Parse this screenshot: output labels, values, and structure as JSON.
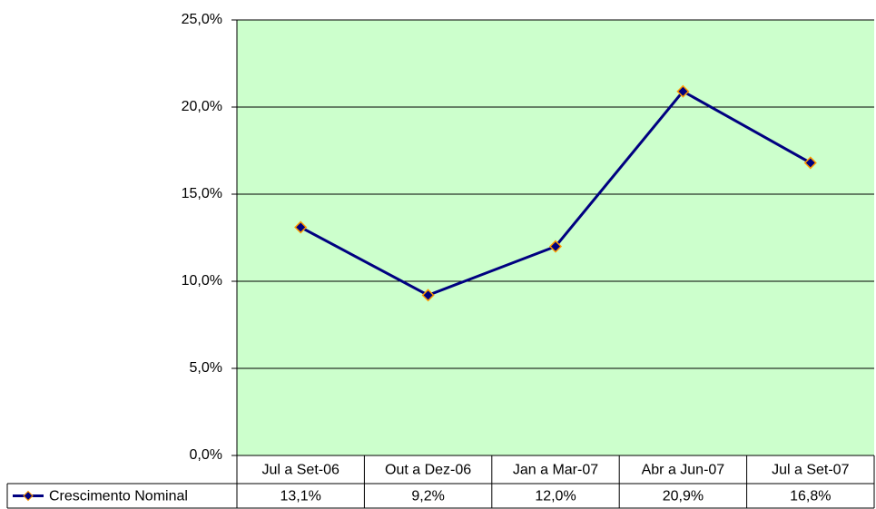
{
  "chart_data": {
    "type": "line",
    "categories": [
      "Jul a Set-06",
      "Out a Dez-06",
      "Jan a Mar-07",
      "Abr a Jun-07",
      "Jul a Set-07"
    ],
    "series": [
      {
        "name": "Crescimento Nominal",
        "color": "#000080",
        "marker_edge": "#ff9900",
        "values": [
          13.1,
          9.2,
          12.0,
          20.9,
          16.8
        ],
        "value_labels": [
          "13,1%",
          "9,2%",
          "12,0%",
          "20,9%",
          "16,8%"
        ]
      }
    ],
    "ylim": [
      0,
      25
    ],
    "yticks": [
      {
        "value": 0,
        "label": "0,0%"
      },
      {
        "value": 5,
        "label": "5,0%"
      },
      {
        "value": 10,
        "label": "10,0%"
      },
      {
        "value": 15,
        "label": "15,0%"
      },
      {
        "value": 20,
        "label": "20,0%"
      },
      {
        "value": 25,
        "label": "25,0%"
      }
    ],
    "grid": true,
    "plot_background": "#ccffcc"
  }
}
